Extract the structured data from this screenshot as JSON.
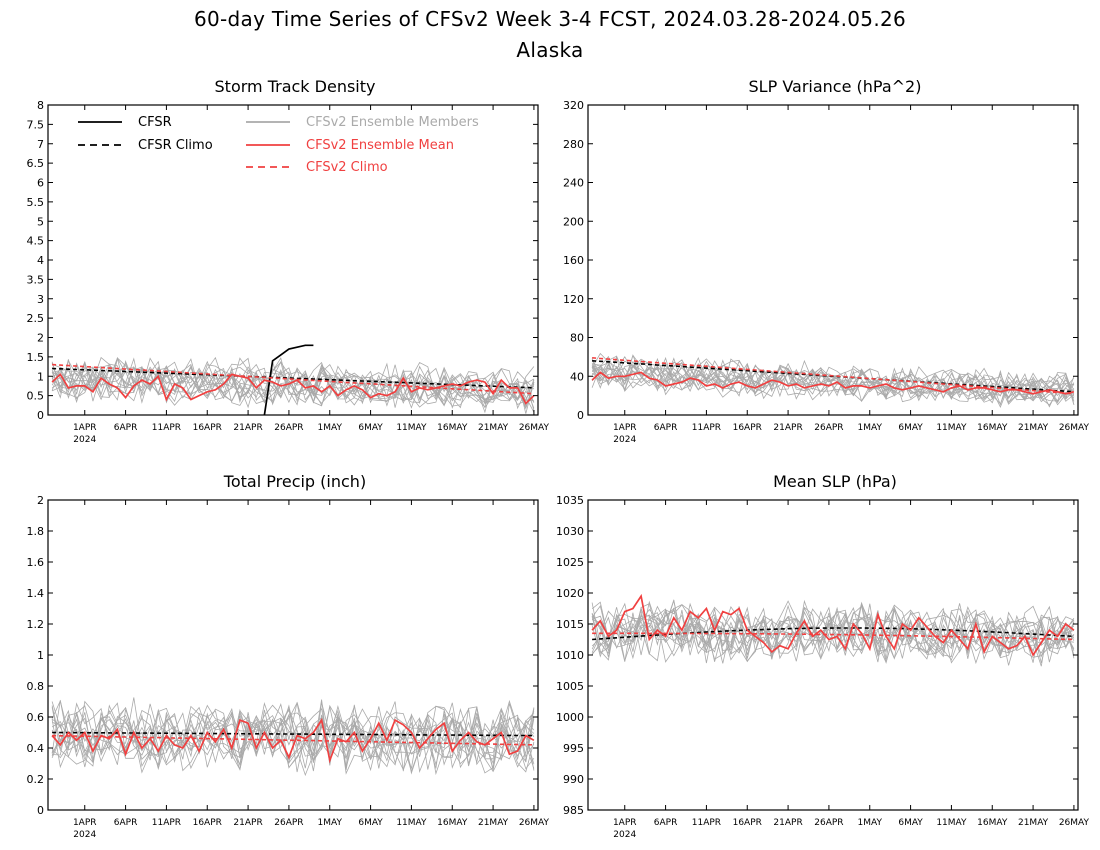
{
  "figure": {
    "title_line1": "60-day Time Series of CFSv2 Week 3-4 FCST, 2024.03.28-2024.05.26",
    "title_line2": "Alaska"
  },
  "legend": [
    {
      "label": "CFSR",
      "color": "#000000",
      "dashed": false
    },
    {
      "label": "CFSR Climo",
      "color": "#000000",
      "dashed": true
    },
    {
      "label": "CFSv2 Ensemble Members",
      "color": "#aaaaaa",
      "dashed": false
    },
    {
      "label": "CFSv2 Ensemble Mean",
      "color": "#f04040",
      "dashed": false
    },
    {
      "label": "CFSv2 Climo",
      "color": "#f04040",
      "dashed": true
    }
  ],
  "x_axis": {
    "start_date": "2024-03-28",
    "days": 60,
    "tick_labels": [
      "1APR",
      "6APR",
      "11APR",
      "16APR",
      "21APR",
      "26APR",
      "1MAY",
      "6MAY",
      "11MAY",
      "16MAY",
      "21MAY",
      "26MAY"
    ],
    "year_label": "2024"
  },
  "chart_data": [
    {
      "type": "line",
      "title": "Storm Track Density",
      "ylim": [
        0,
        8
      ],
      "yticks": [
        0,
        0.5,
        1,
        1.5,
        2,
        2.5,
        3,
        3.5,
        4,
        4.5,
        5,
        5.5,
        6,
        6.5,
        7,
        7.5,
        8
      ],
      "ytick_labels": [
        "0",
        "0.5",
        "1",
        "1.5",
        "2",
        "2.5",
        "3",
        "3.5",
        "4",
        "4.5",
        "5",
        "5.5",
        "6",
        "6.5",
        "7",
        "7.5",
        "8"
      ],
      "has_legend": true,
      "series": [
        {
          "name": "CFSR",
          "color": "#000000",
          "dashed": false,
          "x": [
            "2024-04-23",
            "2024-04-24",
            "2024-04-25",
            "2024-04-26",
            "2024-04-27",
            "2024-04-28",
            "2024-04-29"
          ],
          "values": [
            0,
            1.4,
            1.55,
            1.7,
            1.75,
            1.8,
            1.8
          ]
        },
        {
          "name": "CFSR Climo",
          "color": "#000000",
          "dashed": true,
          "start": 1.2,
          "end": 0.7
        },
        {
          "name": "CFSv2 Climo",
          "color": "#f04040",
          "dashed": true,
          "start": 1.3,
          "end": 0.55
        },
        {
          "name": "CFSv2 Ensemble Mean",
          "color": "#f04040",
          "dashed": false,
          "values": [
            0.85,
            1.05,
            0.7,
            0.75,
            0.75,
            0.6,
            0.95,
            0.8,
            0.7,
            0.45,
            0.75,
            0.9,
            0.8,
            1.0,
            0.4,
            0.8,
            0.7,
            0.4,
            0.5,
            0.6,
            0.65,
            0.8,
            1.05,
            1.0,
            0.95,
            0.7,
            0.9,
            0.85,
            0.75,
            0.8,
            0.9,
            0.7,
            0.75,
            0.6,
            0.75,
            0.5,
            0.65,
            0.75,
            0.65,
            0.45,
            0.55,
            0.5,
            0.6,
            0.95,
            0.6,
            0.7,
            0.65,
            0.7,
            0.75,
            0.8,
            0.75,
            0.85,
            0.9,
            0.85,
            0.55,
            0.9,
            0.7,
            0.7,
            0.3,
            0.5
          ]
        }
      ],
      "ensemble": {
        "color": "#aaaaaa",
        "members": 16,
        "base_start": 0.95,
        "base_end": 0.65,
        "spread": 0.55,
        "min": 0
      }
    },
    {
      "type": "line",
      "title": "SLP Variance (hPa^2)",
      "ylim": [
        0,
        320
      ],
      "yticks": [
        0,
        40,
        80,
        120,
        160,
        200,
        240,
        280,
        320
      ],
      "ytick_labels": [
        "0",
        "40",
        "80",
        "120",
        "160",
        "200",
        "240",
        "280",
        "320"
      ],
      "has_legend": false,
      "series": [
        {
          "name": "CFSR Climo",
          "color": "#000000",
          "dashed": true,
          "start": 56,
          "end": 24
        },
        {
          "name": "CFSv2 Climo",
          "color": "#f04040",
          "dashed": true,
          "start": 59,
          "end": 22
        },
        {
          "name": "CFSv2 Ensemble Mean",
          "color": "#f04040",
          "dashed": false,
          "values": [
            36,
            44,
            38,
            40,
            40,
            42,
            44,
            38,
            36,
            30,
            32,
            34,
            38,
            36,
            30,
            32,
            28,
            32,
            34,
            30,
            28,
            32,
            36,
            34,
            30,
            32,
            28,
            30,
            32,
            30,
            34,
            28,
            30,
            30,
            28,
            30,
            32,
            28,
            26,
            28,
            30,
            28,
            26,
            24,
            28,
            30,
            26,
            28,
            28,
            26,
            24,
            26,
            26,
            24,
            22,
            24,
            26,
            24,
            22,
            24
          ]
        }
      ],
      "ensemble": {
        "color": "#aaaaaa",
        "members": 16,
        "base_start": 44,
        "base_end": 25,
        "spread": 18,
        "min": 8
      }
    },
    {
      "type": "line",
      "title": "Total Precip (inch)",
      "ylim": [
        0,
        2
      ],
      "yticks": [
        0,
        0.2,
        0.4,
        0.6,
        0.8,
        1,
        1.2,
        1.4,
        1.6,
        1.8,
        2
      ],
      "ytick_labels": [
        "0",
        "0.2",
        "0.4",
        "0.6",
        "0.8",
        "1",
        "1.2",
        "1.4",
        "1.6",
        "1.8",
        "2"
      ],
      "has_legend": false,
      "series": [
        {
          "name": "CFSR Climo",
          "color": "#000000",
          "dashed": true,
          "start": 0.5,
          "end": 0.48
        },
        {
          "name": "CFSv2 Climo",
          "color": "#f04040",
          "dashed": true,
          "start": 0.48,
          "end": 0.42
        },
        {
          "name": "CFSv2 Ensemble Mean",
          "color": "#f04040",
          "dashed": false,
          "values": [
            0.48,
            0.42,
            0.5,
            0.45,
            0.5,
            0.38,
            0.48,
            0.46,
            0.52,
            0.36,
            0.5,
            0.4,
            0.46,
            0.38,
            0.48,
            0.42,
            0.4,
            0.48,
            0.38,
            0.5,
            0.44,
            0.52,
            0.4,
            0.58,
            0.56,
            0.4,
            0.5,
            0.4,
            0.45,
            0.34,
            0.48,
            0.46,
            0.5,
            0.58,
            0.32,
            0.46,
            0.44,
            0.5,
            0.38,
            0.46,
            0.56,
            0.45,
            0.58,
            0.55,
            0.5,
            0.4,
            0.46,
            0.52,
            0.56,
            0.38,
            0.45,
            0.5,
            0.44,
            0.42,
            0.46,
            0.5,
            0.36,
            0.38,
            0.48,
            0.45
          ]
        }
      ],
      "ensemble": {
        "color": "#aaaaaa",
        "members": 16,
        "base_start": 0.48,
        "base_end": 0.46,
        "spread": 0.22,
        "min": 0.12
      }
    },
    {
      "type": "line",
      "title": "Mean SLP (hPa)",
      "ylim": [
        985,
        1035
      ],
      "yticks": [
        985,
        990,
        995,
        1000,
        1005,
        1010,
        1015,
        1020,
        1025,
        1030,
        1035
      ],
      "ytick_labels": [
        "985",
        "990",
        "995",
        "1000",
        "1005",
        "1010",
        "1015",
        "1020",
        "1025",
        "1030",
        "1035"
      ],
      "has_legend": false,
      "series": [
        {
          "name": "CFSR Climo",
          "color": "#000000",
          "dashed": true,
          "start": 1012.5,
          "end": 1013,
          "bulge": 1.6
        },
        {
          "name": "CFSv2 Climo",
          "color": "#f04040",
          "dashed": true,
          "start": 1013.5,
          "end": 1012.5,
          "bulge": 0.3
        },
        {
          "name": "CFSv2 Ensemble Mean",
          "color": "#f04040",
          "dashed": false,
          "values": [
            1014,
            1015.5,
            1013,
            1014,
            1017,
            1017.5,
            1019.5,
            1012.5,
            1014,
            1013,
            1016,
            1014,
            1017,
            1016,
            1017.5,
            1014,
            1017,
            1016.5,
            1017.5,
            1014,
            1013,
            1012,
            1010.5,
            1011.5,
            1011,
            1013.5,
            1015.5,
            1013,
            1014,
            1012.5,
            1013,
            1011,
            1015,
            1013.5,
            1011,
            1016.5,
            1013,
            1011,
            1015,
            1014,
            1016,
            1014.5,
            1013,
            1012,
            1014,
            1012.5,
            1011,
            1015,
            1010.5,
            1013,
            1012,
            1011,
            1011.5,
            1013,
            1010,
            1012,
            1014,
            1013,
            1015,
            1014
          ]
        }
      ],
      "ensemble": {
        "color": "#aaaaaa",
        "members": 16,
        "base_start": 1014,
        "base_end": 1013,
        "spread": 4.5,
        "min": 1000
      }
    }
  ]
}
